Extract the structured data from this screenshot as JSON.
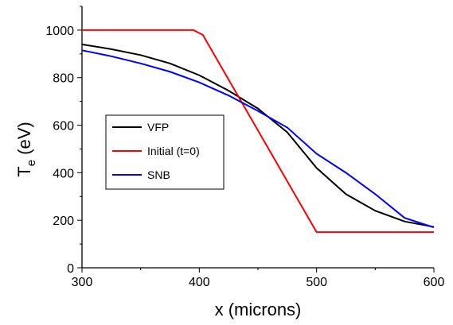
{
  "chart_data": {
    "type": "line",
    "xlabel": "x (microns)",
    "ylabel_parts": [
      "T",
      "e",
      " (eV)"
    ],
    "xlim": [
      300,
      600
    ],
    "ylim": [
      0,
      1100
    ],
    "xticks": [
      300,
      400,
      500,
      600
    ],
    "yticks": [
      0,
      200,
      400,
      600,
      800,
      1000
    ],
    "xminor_ticks": [
      350,
      450,
      550
    ],
    "yminor_ticks": [
      100,
      300,
      500,
      700,
      900,
      1100
    ],
    "grid": false,
    "legend": "left",
    "series": [
      {
        "name": "VFP",
        "color": "#000000",
        "x": [
          300,
          325,
          350,
          375,
          400,
          425,
          450,
          475,
          500,
          525,
          550,
          575,
          600
        ],
        "values": [
          940,
          920,
          895,
          860,
          810,
          745,
          670,
          570,
          420,
          310,
          240,
          195,
          172
        ]
      },
      {
        "name": "Initial (t=0)",
        "color": "#ff0000",
        "x": [
          300,
          395,
          403,
          500,
          600
        ],
        "values": [
          1000,
          1000,
          980,
          150,
          150
        ]
      },
      {
        "name": "SNB",
        "color": "#0000ff",
        "x": [
          300,
          325,
          350,
          375,
          400,
          425,
          450,
          475,
          500,
          525,
          550,
          575,
          600
        ],
        "values": [
          915,
          890,
          860,
          825,
          780,
          725,
          660,
          590,
          480,
          400,
          310,
          210,
          170
        ]
      }
    ]
  }
}
